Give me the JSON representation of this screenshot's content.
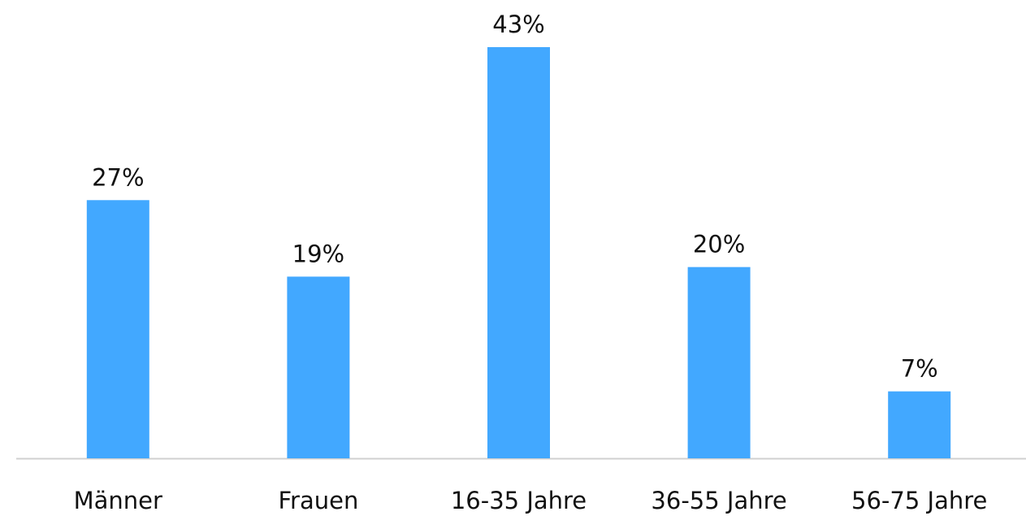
{
  "chart_data": {
    "type": "bar",
    "categories": [
      "Männer",
      "Frauen",
      "16-35 Jahre",
      "36-55 Jahre",
      "56-75 Jahre"
    ],
    "values": [
      27,
      19,
      43,
      20,
      7
    ],
    "value_labels": [
      "27%",
      "19%",
      "43%",
      "20%",
      "7%"
    ],
    "color": "#42a8ff"
  }
}
